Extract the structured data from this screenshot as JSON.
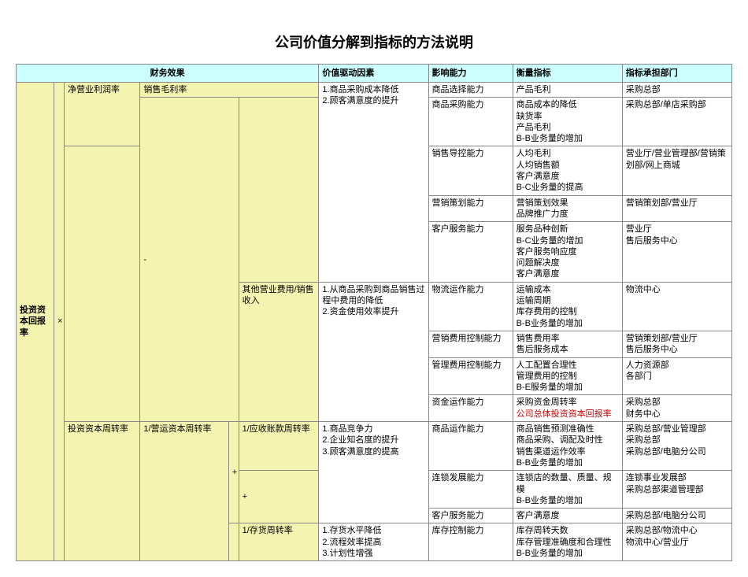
{
  "title": "公司价值分解到指标的方法说明",
  "colors": {
    "header_bg": "#ccffff",
    "yellow_bg": "#f4f4b0",
    "red_text": "#cc0000"
  },
  "headers": {
    "financial": "财务效果",
    "drivers": "价值驱动因素",
    "ability": "影响能力",
    "metrics": "衡量指标",
    "dept": "指标承担部门"
  },
  "root": "投资资本回报率",
  "l2": {
    "net_op_profit": "净营业利润率",
    "other_op_cost": "其他营业费用/销售收入",
    "inv_turn": "投资资本周转率",
    "op_turn": "1/营运资本周转率",
    "ar_turn": "1/应收账款周转率",
    "inv_stock_turn": "1/存货周转率"
  },
  "l3": {
    "gross_margin": "销售毛利率"
  },
  "drivers": {
    "d1": "1.商品采购成本降低\n2.顾客满意度的提升",
    "d2": "1.从商品采购到商品销售过程中费用的降低\n2.资金使用效率提升",
    "d3": "1.商品竞争力\n2.企业知名度的提升\n3.顾客满意度的提高",
    "d4": "1.存货水平降低\n2.流程效率提高\n3.计划性增强"
  },
  "ops": {
    "plus": "+",
    "minus": "-",
    "times": "×"
  },
  "rows": [
    {
      "ability": "商品选择能力",
      "metric": "产品毛利",
      "dept": "采购总部"
    },
    {
      "ability": "商品采购能力",
      "metric": "商品成本的降低\n缺货率\n产品毛利\nB-B业务量的增加",
      "dept": "采购总部/单店采购部"
    },
    {
      "ability": "销售导控能力",
      "metric": "人均毛利\n人均销售额\n客户满意度\nB-C业务量的提高",
      "dept": "营业厅/营业管理部/营销策划部/网上商城"
    },
    {
      "ability": "营销策划能力",
      "metric": "营销策划效果\n品牌推广力度",
      "dept": "营销策划部/营业厅"
    },
    {
      "ability": "客户服务能力",
      "metric": "服务品种创新\nB-C业务量的增加\n客户服务响应度\n问题解决度\n客户满意度",
      "dept": "营业厅\n售后服务中心"
    },
    {
      "ability": "物流运作能力",
      "metric": "运输成本\n运输周期\n库存费用的控制\nB-B业务量的增加",
      "dept": "物流中心"
    },
    {
      "ability": "营销费用控制能力",
      "metric": "销售费用率\n售后服务成本",
      "dept": "营销策划部/营业厅\n售后服务中心"
    },
    {
      "ability": "管理费用控制能力",
      "metric": "人工配置合理性\n管理费用的控制\nB-E服务量的增加",
      "dept": "人力资源部\n各部门"
    },
    {
      "ability": "资金运作能力",
      "metric": "采购资金周转率\n公司总体投资资本回报率",
      "metric_red": true,
      "dept": "采购总部\n财务中心"
    },
    {
      "ability": "商品运作能力",
      "metric": "商品销售预测准确性\n商品采购、调配及时性\n销售渠道运作效率\nB-B业务量的增加",
      "dept": "采购总部/营业管理部\n采购总部\n采购总部/电脑分公司"
    },
    {
      "ability": "连锁发展能力",
      "metric": "连锁店的数量、质量、规模\nB-B业务量的增加",
      "dept": "连锁事业发展部\n采购总部渠道管理部"
    },
    {
      "ability": "客户服务能力",
      "metric": "客户满意度",
      "dept": "采购总部/电脑分公司"
    },
    {
      "ability": "库存控制能力",
      "metric": "库存周转天数\n库存管理准确度和合理性\nB-B业务量的增加",
      "dept": "采购总部/物流中心\n物流中心/营业厅"
    }
  ]
}
